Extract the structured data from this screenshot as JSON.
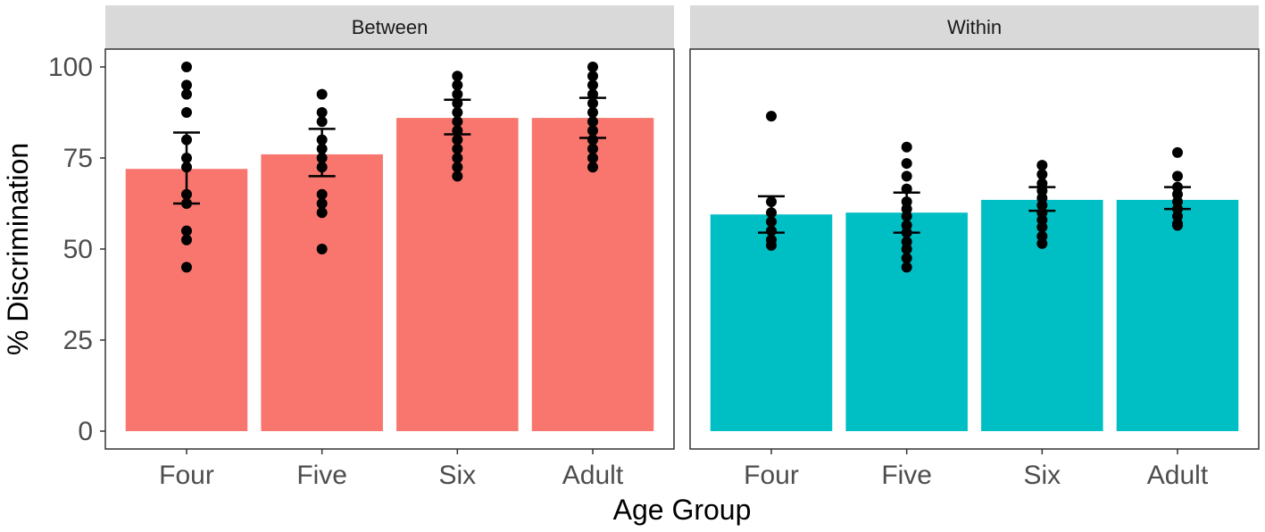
{
  "chart_data": {
    "type": "bar",
    "facets": [
      "Between",
      "Within"
    ],
    "categories": [
      "Four",
      "Five",
      "Six",
      "Adult"
    ],
    "xlabel": "Age Group",
    "ylabel": "% Discrimination",
    "ylim": [
      0,
      100
    ],
    "yticks": [
      0,
      25,
      50,
      75,
      100
    ],
    "grid": false,
    "colors": {
      "Between": "#F8766D",
      "Within": "#00BFC4"
    },
    "series": [
      {
        "name": "Between",
        "values": [
          72,
          76,
          86,
          86
        ],
        "error_low": [
          62.5,
          70,
          81.5,
          80.5
        ],
        "error_high": [
          82,
          83,
          91,
          91.5
        ],
        "points": [
          [
            100,
            95,
            92.5,
            87.5,
            80,
            75,
            72.5,
            65,
            62.5,
            55,
            52.5,
            45
          ],
          [
            92.5,
            87.5,
            85,
            80,
            77.5,
            75,
            72.5,
            65,
            62.5,
            60,
            50
          ],
          [
            97.5,
            95,
            92.5,
            90,
            87.5,
            85,
            82.5,
            80,
            77.5,
            75,
            72.5,
            70
          ],
          [
            100,
            97.5,
            95,
            92.5,
            90,
            87.5,
            85,
            82.5,
            80,
            77.5,
            75,
            72.5
          ]
        ]
      },
      {
        "name": "Within",
        "values": [
          59.5,
          60,
          63.5,
          63.5
        ],
        "error_low": [
          54.5,
          54.5,
          60.5,
          61
        ],
        "error_high": [
          64.5,
          65.5,
          67,
          67
        ],
        "points": [
          [
            86.5,
            63,
            60,
            57.5,
            55,
            52.5,
            51
          ],
          [
            78,
            73.5,
            70,
            66.5,
            63,
            61,
            59,
            56.5,
            54.5,
            52,
            50,
            47.5,
            45
          ],
          [
            73,
            70.5,
            68,
            66,
            64,
            62,
            60,
            58,
            56,
            53.5,
            51.5
          ],
          [
            76.5,
            70,
            67,
            65,
            63,
            61,
            59,
            57,
            56.5
          ]
        ]
      }
    ]
  }
}
